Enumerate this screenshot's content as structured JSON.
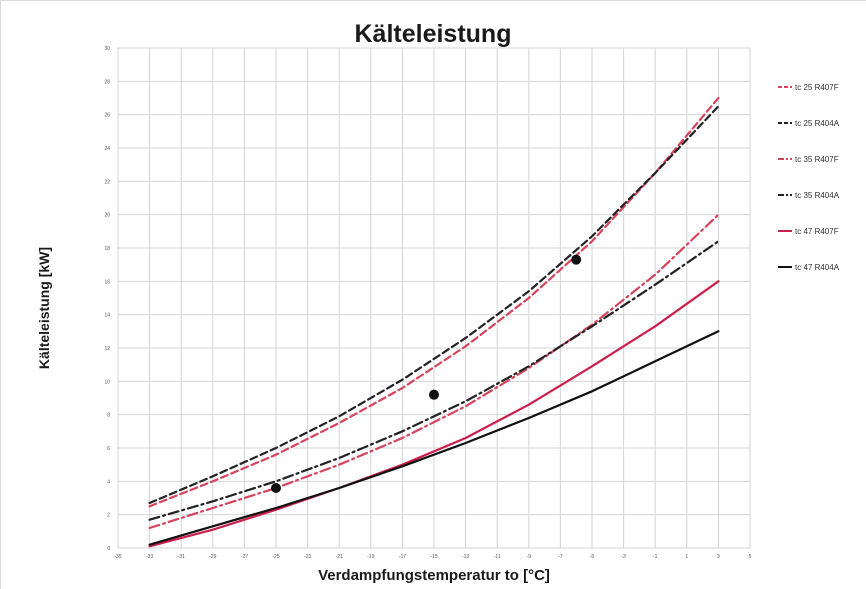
{
  "chart_data": {
    "type": "line",
    "title": "Kälteleistung",
    "xlabel": "Verdampfungstemperatur to [°C]",
    "ylabel": "Kälteleistung [kW]",
    "xlim": [
      -35,
      5
    ],
    "ylim": [
      0,
      30
    ],
    "x_ticks": [
      -35,
      -33,
      -31,
      -29,
      -27,
      -25,
      -23,
      -21,
      -19,
      -17,
      -15,
      -13,
      -11,
      -9,
      -7,
      -5,
      -3,
      -1,
      1,
      3,
      5
    ],
    "y_ticks": [
      0,
      2,
      4,
      6,
      8,
      10,
      12,
      14,
      16,
      18,
      20,
      22,
      24,
      26,
      28,
      30
    ],
    "grid": true,
    "legend_position": "right",
    "series": [
      {
        "name": "tc 25 R407F",
        "color": "#d6435c",
        "dash": "dash",
        "x": [
          -33,
          -29,
          -25,
          -21,
          -17,
          -13,
          -9,
          -5,
          -1,
          3
        ],
        "y": [
          2.5,
          4.0,
          5.6,
          7.5,
          9.6,
          12.1,
          15.0,
          18.4,
          22.5,
          27.0
        ]
      },
      {
        "name": "tc 25 R404A",
        "color": "#222222",
        "dash": "dash",
        "x": [
          -33,
          -29,
          -25,
          -21,
          -17,
          -13,
          -9,
          -5,
          -1,
          3
        ],
        "y": [
          2.7,
          4.3,
          6.0,
          7.9,
          10.1,
          12.6,
          15.4,
          18.7,
          22.5,
          26.5
        ]
      },
      {
        "name": "tc 35 R407F",
        "color": "#d6435c",
        "dash": "dashdot",
        "x": [
          -33,
          -29,
          -25,
          -21,
          -17,
          -13,
          -9,
          -5,
          -1,
          3
        ],
        "y": [
          1.2,
          2.4,
          3.6,
          5.0,
          6.6,
          8.5,
          10.8,
          13.4,
          16.4,
          20.0
        ]
      },
      {
        "name": "tc 35 R404A",
        "color": "#222222",
        "dash": "dashdot",
        "x": [
          -33,
          -29,
          -25,
          -21,
          -17,
          -13,
          -9,
          -5,
          -1,
          3
        ],
        "y": [
          1.7,
          2.8,
          4.0,
          5.4,
          7.0,
          8.8,
          10.9,
          13.3,
          15.8,
          18.4
        ]
      },
      {
        "name": "tc 47 R407F",
        "color": "#cc1f4d",
        "dash": "solid",
        "x": [
          -33,
          -29,
          -25,
          -21,
          -17,
          -13,
          -9,
          -5,
          -1,
          3
        ],
        "y": [
          0.1,
          1.1,
          2.3,
          3.6,
          5.0,
          6.6,
          8.6,
          10.9,
          13.3,
          16.0
        ]
      },
      {
        "name": "tc 47 R404A",
        "color": "#111111",
        "dash": "solid",
        "x": [
          -33,
          -29,
          -25,
          -21,
          -17,
          -13,
          -9,
          -5,
          -1,
          3
        ],
        "y": [
          0.2,
          1.3,
          2.4,
          3.6,
          4.9,
          6.3,
          7.8,
          9.4,
          11.2,
          13.0
        ]
      }
    ],
    "markers": [
      {
        "x": -25,
        "y": 3.6
      },
      {
        "x": -15,
        "y": 9.2
      },
      {
        "x": -6,
        "y": 17.3
      }
    ]
  }
}
